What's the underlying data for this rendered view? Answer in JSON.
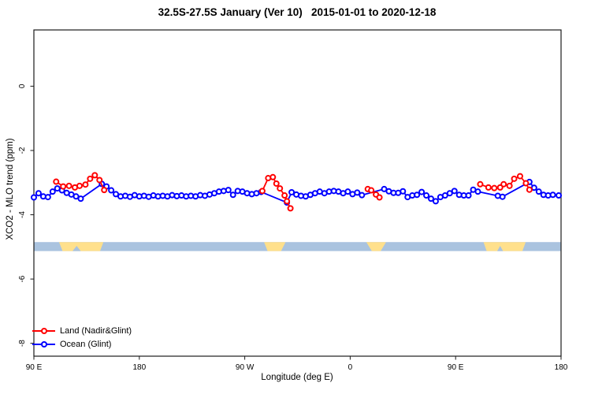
{
  "chart_data": {
    "type": "line",
    "title": "32.5S-27.5S January (Ver 10)   2015-01-01 to 2020-12-18",
    "xlabel": "Longitude (deg E)",
    "ylabel": "XCO2 - MLO trend (ppm)",
    "grid": "off",
    "legend_position": "bottom-left-inside",
    "x_axis": {
      "range": [
        0,
        450
      ],
      "ticks": [
        {
          "pos": 0,
          "label": "90 E"
        },
        {
          "pos": 90,
          "label": "180"
        },
        {
          "pos": 180,
          "label": "90 W"
        },
        {
          "pos": 270,
          "label": "0"
        },
        {
          "pos": 360,
          "label": "90 E"
        },
        {
          "pos": 450,
          "label": "180"
        }
      ]
    },
    "y_axis": {
      "range": [
        1.75,
        -8.4
      ],
      "ticks": [
        {
          "pos": 0,
          "label": "0"
        },
        {
          "pos": -2,
          "label": "-2"
        },
        {
          "pos": -4,
          "label": "-4"
        },
        {
          "pos": -6,
          "label": "-6"
        },
        {
          "pos": -8,
          "label": "-8"
        }
      ]
    },
    "legend": [
      {
        "label": "Land (Nadir&Glint)",
        "color": "#ff0000"
      },
      {
        "label": "Ocean (Glint)",
        "color": "#0000ff"
      }
    ],
    "land_ocean_band": {
      "y_ppm": [
        -4.85,
        -5.13
      ],
      "ocean_color": "#aac3df",
      "land_color": "#ffe08c",
      "land_segments": [
        {
          "top": [
            21.5,
            59.3
          ],
          "bottom": [
            24.5,
            56.5
          ],
          "notches": [
            {
              "center": 36.5,
              "half": 3.5
            }
          ]
        },
        {
          "top": [
            196.5,
            214.8
          ],
          "bottom": [
            199.5,
            211.0
          ],
          "notches": []
        },
        {
          "top": [
            283.8,
            300.6
          ],
          "bottom": [
            288.5,
            296.0
          ],
          "notches": []
        },
        {
          "top": [
            383.8,
            419.8
          ],
          "bottom": [
            386.5,
            417.0
          ],
          "notches": [
            {
              "center": 398,
              "half": 2.5
            }
          ]
        }
      ]
    },
    "series": [
      {
        "name": "Ocean (Glint)",
        "color": "#0000ff",
        "marker": "open-circle",
        "segments": [
          [
            [
              0,
              -3.46
            ],
            [
              4,
              -3.33
            ],
            [
              8,
              -3.43
            ],
            [
              12,
              -3.45
            ],
            [
              16,
              -3.28
            ],
            [
              20,
              -3.18
            ],
            [
              24,
              -3.24
            ],
            [
              28,
              -3.32
            ],
            [
              32,
              -3.37
            ],
            [
              36,
              -3.43
            ],
            [
              40,
              -3.5
            ],
            [
              58,
              -3.04
            ],
            [
              62,
              -3.12
            ],
            [
              66,
              -3.24
            ],
            [
              70,
              -3.36
            ],
            [
              74,
              -3.43
            ],
            [
              78,
              -3.41
            ],
            [
              82,
              -3.44
            ],
            [
              86,
              -3.39
            ],
            [
              90,
              -3.43
            ],
            [
              94,
              -3.41
            ],
            [
              98,
              -3.44
            ],
            [
              102,
              -3.4
            ],
            [
              106,
              -3.43
            ],
            [
              110,
              -3.41
            ],
            [
              114,
              -3.43
            ],
            [
              118,
              -3.39
            ],
            [
              122,
              -3.42
            ],
            [
              126,
              -3.4
            ],
            [
              130,
              -3.43
            ],
            [
              134,
              -3.41
            ],
            [
              138,
              -3.43
            ],
            [
              142,
              -3.39
            ],
            [
              146,
              -3.41
            ],
            [
              150,
              -3.37
            ],
            [
              154,
              -3.33
            ],
            [
              158,
              -3.28
            ],
            [
              162,
              -3.26
            ],
            [
              166,
              -3.23
            ],
            [
              170,
              -3.38
            ],
            [
              174,
              -3.26
            ],
            [
              178,
              -3.28
            ],
            [
              182,
              -3.33
            ],
            [
              186,
              -3.36
            ],
            [
              190,
              -3.33
            ],
            [
              194,
              -3.29
            ],
            [
              216,
              -3.62
            ],
            [
              220,
              -3.3
            ],
            [
              224,
              -3.37
            ],
            [
              228,
              -3.41
            ],
            [
              232,
              -3.43
            ],
            [
              236,
              -3.38
            ],
            [
              240,
              -3.33
            ],
            [
              244,
              -3.28
            ],
            [
              248,
              -3.33
            ],
            [
              252,
              -3.28
            ],
            [
              256,
              -3.26
            ],
            [
              260,
              -3.28
            ],
            [
              264,
              -3.33
            ],
            [
              268,
              -3.28
            ],
            [
              272,
              -3.36
            ],
            [
              276,
              -3.31
            ],
            [
              280,
              -3.39
            ],
            [
              299,
              -3.2
            ],
            [
              303,
              -3.27
            ],
            [
              307,
              -3.32
            ],
            [
              311,
              -3.32
            ],
            [
              315,
              -3.27
            ],
            [
              319,
              -3.45
            ],
            [
              323,
              -3.4
            ],
            [
              327,
              -3.38
            ],
            [
              331,
              -3.29
            ],
            [
              335,
              -3.4
            ],
            [
              339,
              -3.5
            ],
            [
              343,
              -3.58
            ],
            [
              347,
              -3.45
            ],
            [
              351,
              -3.4
            ],
            [
              355,
              -3.33
            ],
            [
              359,
              -3.26
            ],
            [
              363,
              -3.38
            ],
            [
              367,
              -3.4
            ],
            [
              371,
              -3.4
            ],
            [
              375,
              -3.22
            ],
            [
              379,
              -3.28
            ],
            [
              396,
              -3.41
            ],
            [
              400,
              -3.44
            ],
            [
              423,
              -2.98
            ],
            [
              427,
              -3.16
            ],
            [
              431,
              -3.28
            ],
            [
              435,
              -3.38
            ],
            [
              439,
              -3.4
            ],
            [
              443,
              -3.38
            ],
            [
              448,
              -3.4
            ]
          ]
        ]
      },
      {
        "name": "Land (Nadir&Glint)",
        "color": "#ff0000",
        "marker": "open-circle",
        "segments": [
          [
            [
              19,
              -2.97
            ],
            [
              25,
              -3.12
            ],
            [
              30,
              -3.1
            ],
            [
              35,
              -3.15
            ],
            [
              39,
              -3.1
            ],
            [
              44,
              -3.06
            ],
            [
              48,
              -2.88
            ],
            [
              52,
              -2.77
            ],
            [
              56,
              -2.92
            ],
            [
              60,
              -3.23
            ]
          ],
          [
            [
              195,
              -3.26
            ],
            [
              200,
              -2.86
            ],
            [
              204,
              -2.83
            ],
            [
              207,
              -3.03
            ],
            [
              210,
              -3.18
            ],
            [
              214,
              -3.4
            ],
            [
              216,
              -3.58
            ],
            [
              219,
              -3.8
            ]
          ],
          [
            [
              285,
              -3.2
            ],
            [
              288,
              -3.24
            ],
            [
              292,
              -3.37
            ],
            [
              295,
              -3.46
            ]
          ],
          [
            [
              381,
              -3.05
            ],
            [
              388,
              -3.15
            ],
            [
              393,
              -3.17
            ],
            [
              398,
              -3.15
            ],
            [
              401,
              -3.05
            ],
            [
              406,
              -3.1
            ],
            [
              410,
              -2.88
            ],
            [
              415,
              -2.8
            ],
            [
              420,
              -3.02
            ],
            [
              423,
              -3.22
            ]
          ]
        ]
      }
    ],
    "frame_color": "#1a1a1a"
  }
}
